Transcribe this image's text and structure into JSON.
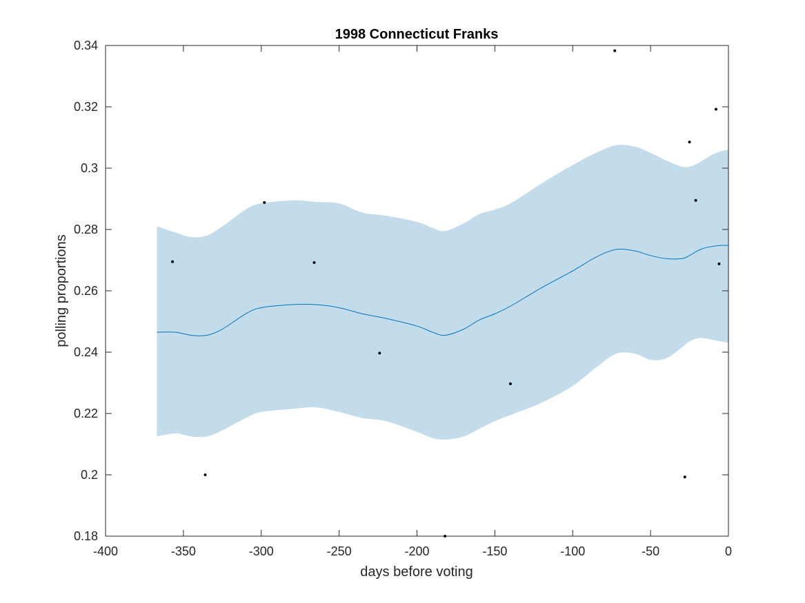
{
  "chart_data": {
    "type": "line",
    "title": "1998 Connecticut Franks",
    "xlabel": "days before voting",
    "ylabel": "polling proportions",
    "xlim": [
      -400,
      0
    ],
    "ylim": [
      0.18,
      0.34
    ],
    "xticks": [
      -400,
      -350,
      -300,
      -250,
      -200,
      -150,
      -100,
      -50,
      0
    ],
    "xtick_labels": [
      "-400",
      "-350",
      "-300",
      "-250",
      "-200",
      "-150",
      "-100",
      "-50",
      "0"
    ],
    "yticks": [
      0.18,
      0.2,
      0.22,
      0.24,
      0.26,
      0.28,
      0.3,
      0.32,
      0.34
    ],
    "ytick_labels": [
      "0.18",
      "0.2",
      "0.22",
      "0.24",
      "0.26",
      "0.28",
      "0.3",
      "0.32",
      "0.34"
    ],
    "grid": false,
    "colors": {
      "band": "#c2dcec",
      "line": "#0072bd",
      "points": "#000000",
      "axes": "#262626"
    },
    "band": {
      "x": [
        -367,
        -355,
        -345,
        -335,
        -325,
        -310,
        -300,
        -280,
        -265,
        -250,
        -235,
        -220,
        -200,
        -190,
        -182,
        -170,
        -160,
        -150,
        -140,
        -120,
        -100,
        -85,
        -72,
        -60,
        -50,
        -40,
        -30,
        -25,
        -20,
        -15,
        -10,
        -5,
        0
      ],
      "upper": [
        0.281,
        0.279,
        0.2775,
        0.278,
        0.281,
        0.2865,
        0.2885,
        0.2895,
        0.289,
        0.2885,
        0.2855,
        0.2845,
        0.2825,
        0.2805,
        0.2795,
        0.282,
        0.285,
        0.2865,
        0.2885,
        0.295,
        0.301,
        0.305,
        0.3075,
        0.307,
        0.305,
        0.3025,
        0.3005,
        0.3005,
        0.3015,
        0.303,
        0.3045,
        0.3055,
        0.306
      ],
      "lower": [
        0.2125,
        0.2135,
        0.2125,
        0.2125,
        0.2145,
        0.2185,
        0.2205,
        0.2215,
        0.222,
        0.2205,
        0.2185,
        0.2175,
        0.214,
        0.212,
        0.2115,
        0.2125,
        0.215,
        0.2175,
        0.2195,
        0.2235,
        0.229,
        0.235,
        0.2395,
        0.2395,
        0.2375,
        0.238,
        0.2415,
        0.2435,
        0.2445,
        0.2445,
        0.244,
        0.2435,
        0.243
      ]
    },
    "series": [
      {
        "x": [
          -367,
          -355,
          -345,
          -335,
          -325,
          -310,
          -300,
          -280,
          -265,
          -250,
          -235,
          -220,
          -200,
          -190,
          -182,
          -170,
          -160,
          -150,
          -140,
          -120,
          -100,
          -85,
          -72,
          -60,
          -50,
          -40,
          -30,
          -25,
          -20,
          -15,
          -10,
          -5,
          0
        ],
        "values": [
          0.2465,
          0.2465,
          0.2455,
          0.2455,
          0.2475,
          0.2525,
          0.2545,
          0.2555,
          0.2555,
          0.2545,
          0.2525,
          0.251,
          0.2485,
          0.2465,
          0.2455,
          0.2475,
          0.2505,
          0.2525,
          0.255,
          0.261,
          0.2665,
          0.271,
          0.2735,
          0.273,
          0.2715,
          0.2705,
          0.2705,
          0.2715,
          0.273,
          0.274,
          0.2745,
          0.2748,
          0.2748
        ]
      }
    ],
    "scatter": {
      "x": [
        -357,
        -336,
        -298,
        -266,
        -224,
        -182,
        -140,
        -73,
        -28,
        -25,
        -21,
        -8,
        -6
      ],
      "y": [
        0.2695,
        0.2,
        0.2888,
        0.2692,
        0.2397,
        0.18,
        0.2297,
        0.3383,
        0.1993,
        0.3085,
        0.2895,
        0.3192,
        0.2688
      ]
    }
  }
}
